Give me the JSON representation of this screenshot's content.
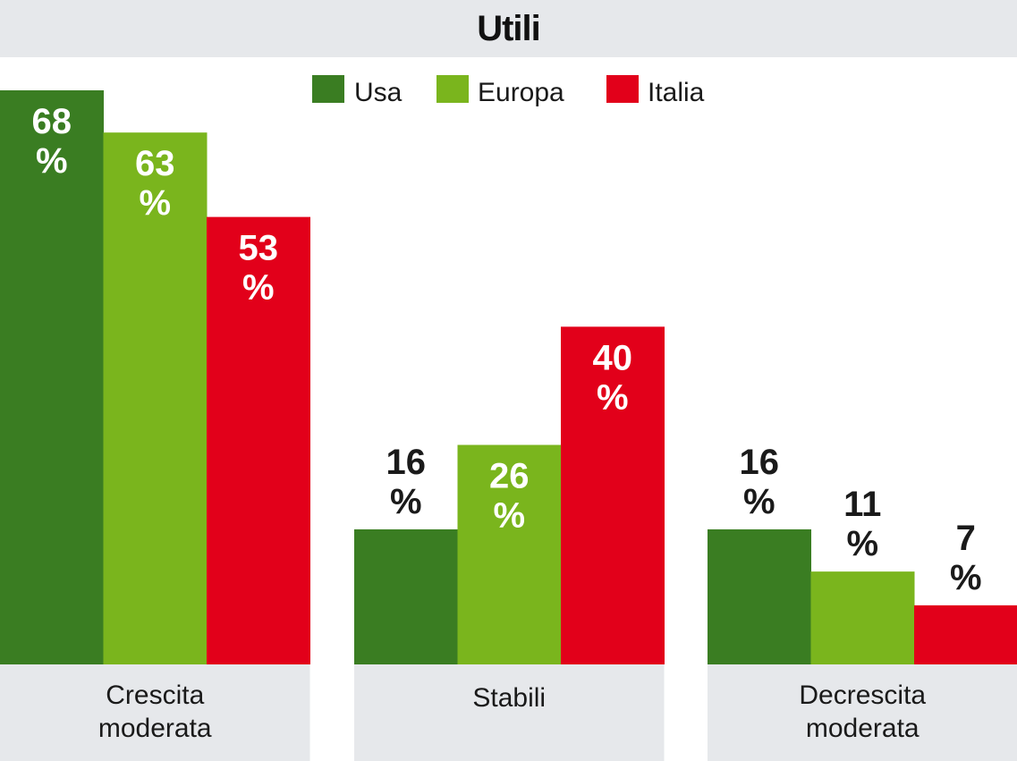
{
  "chart_data": {
    "type": "bar",
    "title": "Utili",
    "categories": [
      [
        "Crescita",
        "moderata"
      ],
      [
        "Stabili"
      ],
      [
        "Decrescita",
        "moderata"
      ]
    ],
    "series": [
      {
        "name": "Usa",
        "color": "#3a7d22",
        "values": [
          68,
          16,
          16
        ]
      },
      {
        "name": "Europa",
        "color": "#7ab51d",
        "values": [
          63,
          26,
          11
        ]
      },
      {
        "name": "Italia",
        "color": "#e2001a",
        "values": [
          53,
          40,
          7
        ]
      }
    ],
    "value_suffix": "%",
    "ylim": [
      0,
      68
    ],
    "legend_position": "top-center",
    "grid": false
  }
}
